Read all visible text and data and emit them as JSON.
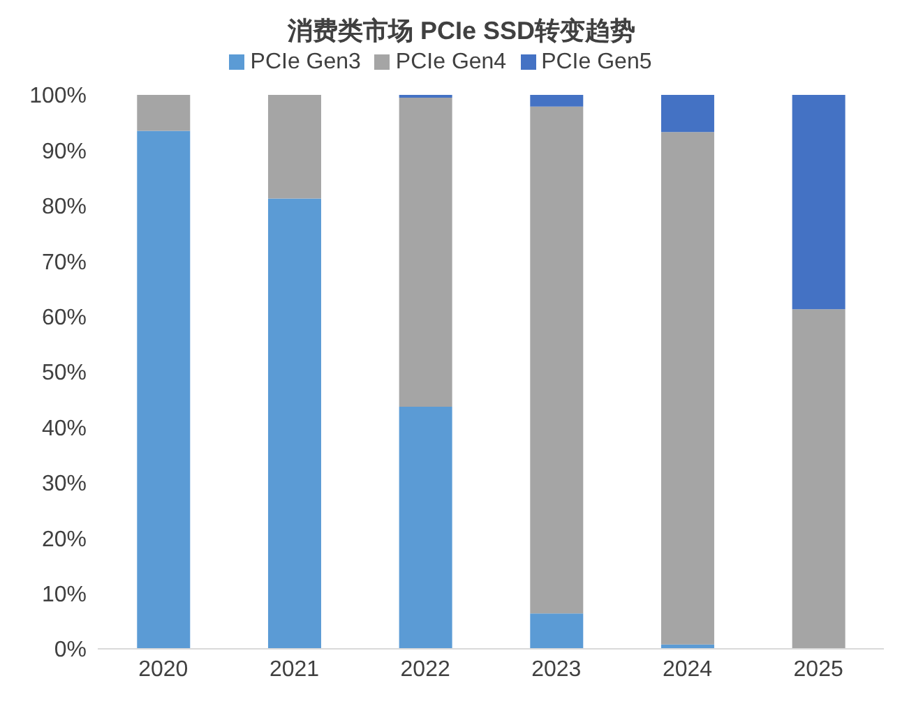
{
  "chart_data": {
    "type": "bar",
    "title": "消费类市场 PCIe SSD转变趋势",
    "categories": [
      "2020",
      "2021",
      "2022",
      "2023",
      "2024",
      "2025"
    ],
    "stacked": true,
    "series": [
      {
        "name": "PCIe Gen3",
        "color": "#5b9bd5",
        "values": [
          93.5,
          81.3,
          43.7,
          6.4,
          0.8,
          0
        ]
      },
      {
        "name": "PCIe Gen4",
        "color": "#a5a5a5",
        "values": [
          6.5,
          18.7,
          55.8,
          91.5,
          92.5,
          61.3
        ]
      },
      {
        "name": "PCIe Gen5",
        "color": "#4472c4",
        "values": [
          0,
          0,
          0.5,
          2.1,
          6.7,
          38.7
        ]
      }
    ],
    "ylim": [
      0,
      100
    ],
    "yticks": [
      {
        "value": 0,
        "label": "0%"
      },
      {
        "value": 10,
        "label": "10%"
      },
      {
        "value": 20,
        "label": "20%"
      },
      {
        "value": 30,
        "label": "30%"
      },
      {
        "value": 40,
        "label": "40%"
      },
      {
        "value": 50,
        "label": "50%"
      },
      {
        "value": 60,
        "label": "60%"
      },
      {
        "value": 70,
        "label": "70%"
      },
      {
        "value": 80,
        "label": "80%"
      },
      {
        "value": 90,
        "label": "90%"
      },
      {
        "value": 100,
        "label": "100%"
      }
    ],
    "grid": false,
    "legend": "top"
  }
}
